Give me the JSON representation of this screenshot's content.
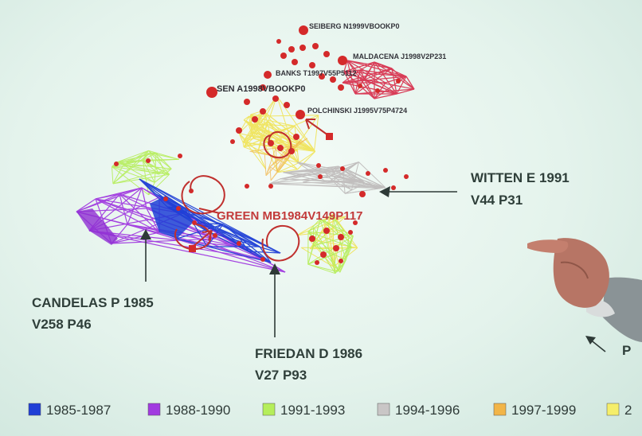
{
  "node_labels": {
    "seiberg": "SEIBERG N1999VBOOKP0",
    "maldacena": "MALDACENA J1998V2P231",
    "banks": "BANKS T1997V55P5112",
    "sen": "SEN A1998VBOOKP0",
    "polchinski": "POLCHINSKI J1995V75P4724",
    "green": "GREEN MB1984V149P117"
  },
  "callouts": {
    "witten_line1": "WITTEN E 1991",
    "witten_line2": "V44 P31",
    "candelas_line1": "CANDELAS P 1985",
    "candelas_line2": "V258 P46",
    "friedan_line1": "FRIEDAN D 1986",
    "friedan_line2": "V27 P93",
    "partial": "P"
  },
  "legend": [
    {
      "label": "1985-1987",
      "color": "#1f3fd6"
    },
    {
      "label": "1988-1990",
      "color": "#a13be0"
    },
    {
      "label": "1991-1993",
      "color": "#b5ee5a"
    },
    {
      "label": "1994-1996",
      "color": "#c9c6c6"
    },
    {
      "label": "1997-1999",
      "color": "#f2b548"
    },
    {
      "label": "2",
      "color": "#f5ee6a"
    }
  ],
  "colors": {
    "node": "#d42a2a",
    "edges_1985": "#1f3fd6",
    "edges_1988": "#a13be0",
    "edges_1991": "#b5ee5a",
    "edges_1994": "#c9c6c6",
    "edges_1997": "#f2b548",
    "edges_2000": "#f0e24a",
    "edges_hub": "#d8334f"
  }
}
